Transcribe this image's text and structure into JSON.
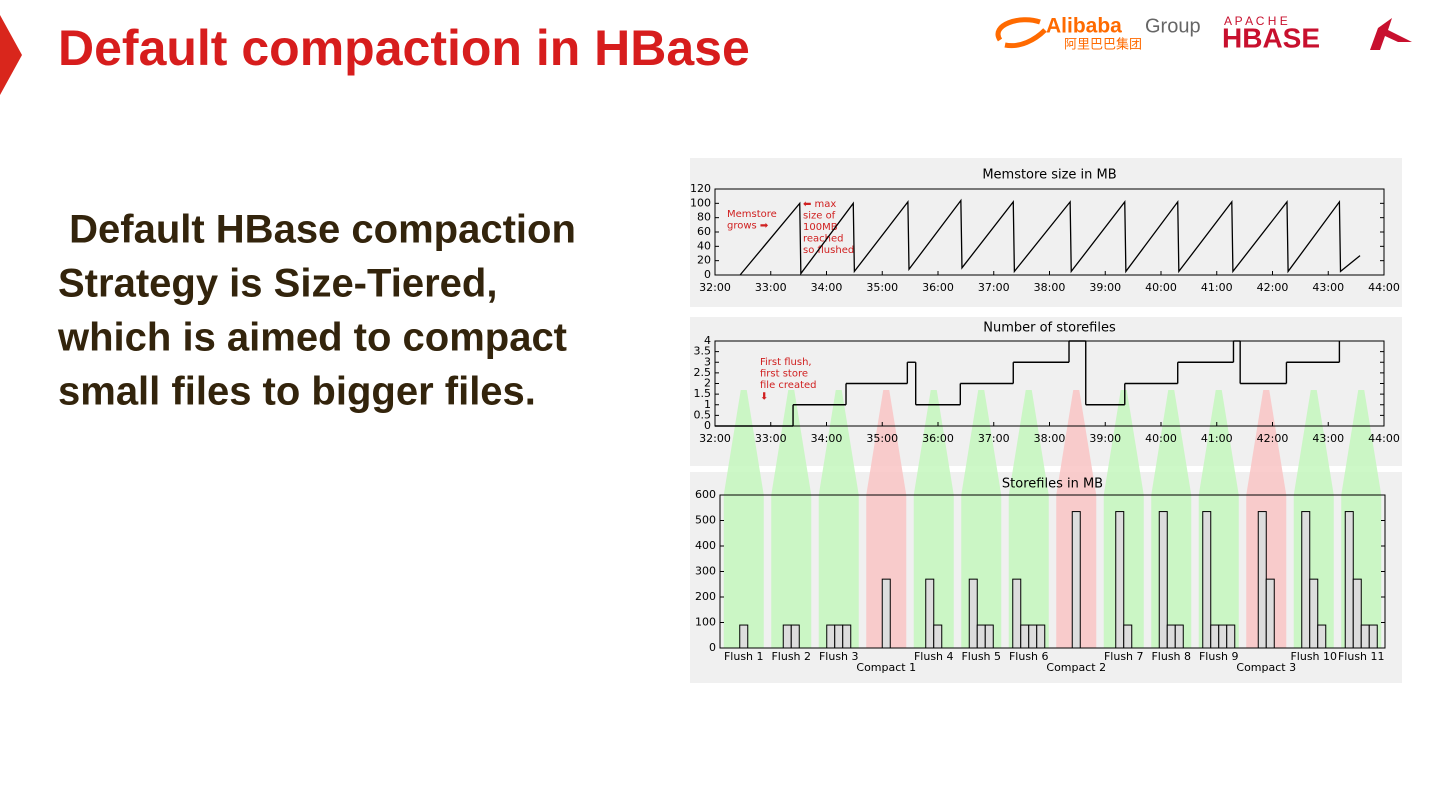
{
  "header": {
    "title": "Default compaction in HBase",
    "logo_alibaba": "Alibaba",
    "logo_group": "Group",
    "logo_cn": "阿里巴巴集团",
    "logo_apache": "A P A C H E",
    "logo_hbase": "HBASE"
  },
  "body": {
    "lines": [
      " Default HBase compaction",
      "Strategy is Size-Tiered,",
      "which is aimed to compact",
      "small files to bigger files."
    ]
  },
  "chart_data": [
    {
      "type": "line",
      "title": "Memstore size in MB",
      "color": "#000000",
      "x": [
        32.45,
        33.52,
        33.54,
        34.48,
        34.5,
        35.46,
        35.48,
        36.41,
        36.43,
        37.35,
        37.37,
        38.37,
        38.39,
        39.35,
        39.37,
        40.3,
        40.32,
        41.27,
        41.29,
        42.26,
        42.28,
        43.2,
        43.22,
        43.57
      ],
      "values": [
        0,
        100,
        2,
        100,
        5,
        102,
        8,
        104,
        10,
        102,
        5,
        102,
        5,
        102,
        5,
        102,
        5,
        102,
        5,
        102,
        5,
        102,
        5,
        27
      ],
      "xlim": [
        32,
        44
      ],
      "xticks": [
        {
          "value": 32,
          "label": "32:00"
        },
        {
          "value": 33,
          "label": "33:00"
        },
        {
          "value": 34,
          "label": "34:00"
        },
        {
          "value": 35,
          "label": "35:00"
        },
        {
          "value": 36,
          "label": "36:00"
        },
        {
          "value": 37,
          "label": "37:00"
        },
        {
          "value": 38,
          "label": "38:00"
        },
        {
          "value": 39,
          "label": "39:00"
        },
        {
          "value": 40,
          "label": "40:00"
        },
        {
          "value": 41,
          "label": "41:00"
        },
        {
          "value": 42,
          "label": "42:00"
        },
        {
          "value": 43,
          "label": "43:00"
        },
        {
          "value": 44,
          "label": "44:00"
        }
      ],
      "ylim": [
        0,
        120
      ],
      "yticks": [
        0,
        20,
        40,
        60,
        80,
        100,
        120
      ],
      "annotations": [
        [
          "Memstore",
          "grows ➡"
        ],
        [
          "⬅ max",
          "size of",
          "100MB",
          "reached",
          "so flushed"
        ]
      ]
    },
    {
      "type": "line",
      "drawstyle": "steps",
      "title": "Number of storefiles",
      "color": "#000000",
      "x": [
        32,
        33.4,
        34.35,
        35.45,
        35.6,
        36.4,
        37.35,
        38.35,
        38.65,
        39.35,
        40.3,
        41.3,
        41.42,
        42.25,
        43.2
      ],
      "values": [
        0,
        1,
        2,
        3,
        1,
        2,
        3,
        4,
        1,
        2,
        3,
        4,
        2,
        3,
        4
      ],
      "xlim": [
        32,
        44
      ],
      "xticks": [
        {
          "value": 32,
          "label": "32:00"
        },
        {
          "value": 33,
          "label": "33:00"
        },
        {
          "value": 34,
          "label": "34:00"
        },
        {
          "value": 35,
          "label": "35:00"
        },
        {
          "value": 36,
          "label": "36:00"
        },
        {
          "value": 37,
          "label": "37:00"
        },
        {
          "value": 38,
          "label": "38:00"
        },
        {
          "value": 39,
          "label": "39:00"
        },
        {
          "value": 40,
          "label": "40:00"
        },
        {
          "value": 41,
          "label": "41:00"
        },
        {
          "value": 42,
          "label": "42:00"
        },
        {
          "value": 43,
          "label": "43:00"
        },
        {
          "value": 44,
          "label": "44:00"
        }
      ],
      "ylim": [
        0,
        4
      ],
      "yticks": [
        0,
        0.5,
        1,
        1.5,
        2,
        2.5,
        3,
        3.5,
        4
      ],
      "annotations": [
        [
          "First flush,",
          "first store",
          "file created",
          "⬇"
        ]
      ]
    },
    {
      "type": "bar",
      "title": "Storefiles in MB",
      "color": "#dddddd",
      "ylim": [
        0,
        600
      ],
      "yticks": [
        0,
        100,
        200,
        300,
        400,
        500,
        600
      ],
      "groups": [
        {
          "label": "Flush 1",
          "color": "#c4f7bd",
          "values": [
            90
          ]
        },
        {
          "label": "Flush 2",
          "color": "#c4f7bd",
          "values": [
            90,
            90
          ]
        },
        {
          "label": "Flush 3",
          "color": "#c4f7bd",
          "values": [
            90,
            90,
            90
          ]
        },
        {
          "label": "Compact 1",
          "color": "#f9c4c4",
          "values": [
            270
          ]
        },
        {
          "label": "Flush 4",
          "color": "#c4f7bd",
          "values": [
            270,
            90
          ]
        },
        {
          "label": "Flush 5",
          "color": "#c4f7bd",
          "values": [
            270,
            90,
            90
          ]
        },
        {
          "label": "Flush 6",
          "color": "#c4f7bd",
          "values": [
            270,
            90,
            90,
            90
          ]
        },
        {
          "label": "Compact 2",
          "color": "#f9c4c4",
          "values": [
            535
          ]
        },
        {
          "label": "Flush 7",
          "color": "#c4f7bd",
          "values": [
            535,
            90
          ]
        },
        {
          "label": "Flush 8",
          "color": "#c4f7bd",
          "values": [
            535,
            90,
            90
          ]
        },
        {
          "label": "Flush 9",
          "color": "#c4f7bd",
          "values": [
            535,
            90,
            90,
            90
          ]
        },
        {
          "label": "Compact 3",
          "color": "#f9c4c4",
          "values": [
            535,
            270
          ]
        },
        {
          "label": "Flush 10",
          "color": "#c4f7bd",
          "values": [
            535,
            270,
            90
          ]
        },
        {
          "label": "Flush 11",
          "color": "#c4f7bd",
          "values": [
            535,
            270,
            90,
            90
          ]
        }
      ]
    }
  ]
}
